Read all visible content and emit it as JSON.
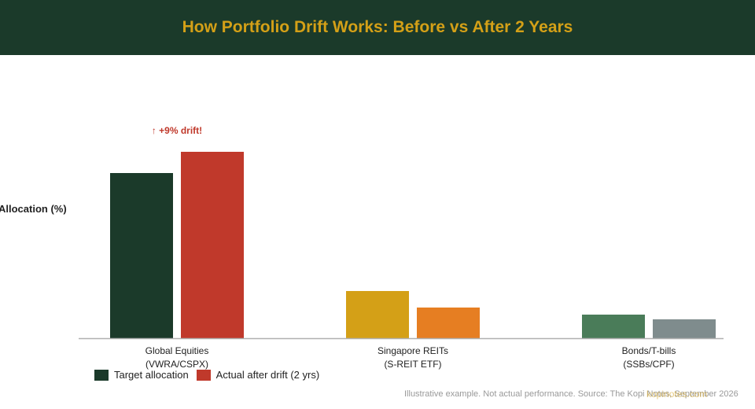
{
  "colors": {
    "header_bg": "#1b3a2a",
    "title": "#d4a017",
    "drift_annotation": "#c0392b"
  },
  "chart_data": {
    "type": "bar",
    "title": "How Portfolio Drift Works: Before vs After 2 Years",
    "ylabel": "Allocation (%)",
    "xlabel": "",
    "ylim": [
      0,
      80
    ],
    "grid": false,
    "legend_position": "bottom-left",
    "categories": [
      [
        "Global Equities",
        "(VWRA/CSPX)"
      ],
      [
        "Singapore REITs",
        "(S-REIT ETF)"
      ],
      [
        "Bonds/T-bills",
        "(SSBs/CPF)"
      ]
    ],
    "series": [
      {
        "name": "Target allocation",
        "values": [
          70,
          20,
          10
        ],
        "colors": [
          "#1b3a2a",
          "#d4a017",
          "#4a7c59"
        ]
      },
      {
        "name": "Actual after drift (2 yrs)",
        "values": [
          79,
          13,
          8
        ],
        "colors": [
          "#c0392b",
          "#e67e22",
          "#7f8c8d"
        ]
      }
    ],
    "annotations": [
      {
        "text": "↑ +9% drift!",
        "category_index": 0,
        "series_index": 1
      }
    ]
  },
  "legend": [
    {
      "label": "Target allocation",
      "color": "#1b3a2a"
    },
    {
      "label": "Actual after drift (2 yrs)",
      "color": "#c0392b"
    }
  ],
  "footer": "Illustrative example. Not actual performance. Source: The Kopi Notes, September 2026",
  "watermark": "kopinotes.com"
}
